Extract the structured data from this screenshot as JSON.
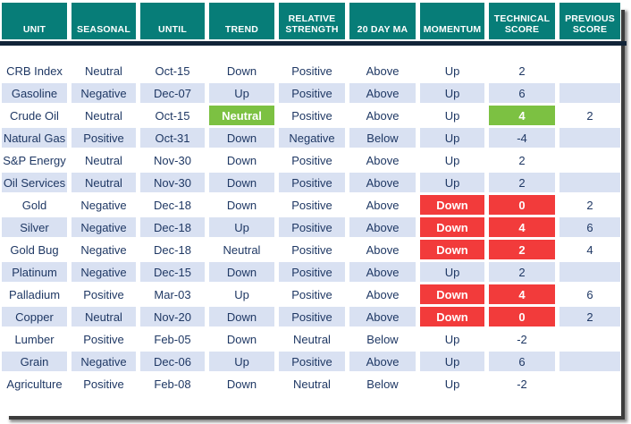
{
  "table": {
    "columns": [
      "UNIT",
      "SEASONAL",
      "UNTIL",
      "TREND",
      "RELATIVE STRENGTH",
      "20 DAY MA",
      "MOMENTUM",
      "TECHNICAL SCORE",
      "PREVIOUS SCORE"
    ],
    "rows": [
      {
        "cells": [
          {
            "text": "CRB Index"
          },
          {
            "text": "Neutral"
          },
          {
            "text": "Oct-15"
          },
          {
            "text": "Down"
          },
          {
            "text": "Positive"
          },
          {
            "text": "Above"
          },
          {
            "text": "Up"
          },
          {
            "text": "2"
          },
          {
            "text": ""
          }
        ]
      },
      {
        "cells": [
          {
            "text": "Gasoline"
          },
          {
            "text": "Negative"
          },
          {
            "text": "Dec-07"
          },
          {
            "text": "Up"
          },
          {
            "text": "Positive"
          },
          {
            "text": "Above"
          },
          {
            "text": "Up"
          },
          {
            "text": "6"
          },
          {
            "text": ""
          }
        ]
      },
      {
        "cells": [
          {
            "text": "Crude Oil"
          },
          {
            "text": "Neutral"
          },
          {
            "text": "Oct-15"
          },
          {
            "text": "Neutral",
            "hl": "green"
          },
          {
            "text": "Positive"
          },
          {
            "text": "Above"
          },
          {
            "text": "Up"
          },
          {
            "text": "4",
            "hl": "green"
          },
          {
            "text": "2"
          }
        ]
      },
      {
        "cells": [
          {
            "text": "Natural Gas"
          },
          {
            "text": "Positive"
          },
          {
            "text": "Oct-31"
          },
          {
            "text": "Down"
          },
          {
            "text": "Negative"
          },
          {
            "text": "Below"
          },
          {
            "text": "Up"
          },
          {
            "text": "-4"
          },
          {
            "text": ""
          }
        ]
      },
      {
        "cells": [
          {
            "text": "S&P Energy"
          },
          {
            "text": "Neutral"
          },
          {
            "text": "Nov-30"
          },
          {
            "text": "Down"
          },
          {
            "text": "Positive"
          },
          {
            "text": "Above"
          },
          {
            "text": "Up"
          },
          {
            "text": "2"
          },
          {
            "text": ""
          }
        ]
      },
      {
        "cells": [
          {
            "text": "Oil Services"
          },
          {
            "text": "Neutral"
          },
          {
            "text": "Nov-30"
          },
          {
            "text": "Down"
          },
          {
            "text": "Positive"
          },
          {
            "text": "Above"
          },
          {
            "text": "Up"
          },
          {
            "text": "2"
          },
          {
            "text": ""
          }
        ]
      },
      {
        "cells": [
          {
            "text": "Gold"
          },
          {
            "text": "Negative"
          },
          {
            "text": "Dec-18"
          },
          {
            "text": "Down"
          },
          {
            "text": "Positive"
          },
          {
            "text": "Above"
          },
          {
            "text": "Down",
            "hl": "red"
          },
          {
            "text": "0",
            "hl": "red"
          },
          {
            "text": "2"
          }
        ]
      },
      {
        "cells": [
          {
            "text": "Silver"
          },
          {
            "text": "Negative"
          },
          {
            "text": "Dec-18"
          },
          {
            "text": "Up"
          },
          {
            "text": "Positive"
          },
          {
            "text": "Above"
          },
          {
            "text": "Down",
            "hl": "red"
          },
          {
            "text": "4",
            "hl": "red"
          },
          {
            "text": "6"
          }
        ]
      },
      {
        "cells": [
          {
            "text": "Gold Bug"
          },
          {
            "text": "Negative"
          },
          {
            "text": "Dec-18"
          },
          {
            "text": "Neutral"
          },
          {
            "text": "Positive"
          },
          {
            "text": "Above"
          },
          {
            "text": "Down",
            "hl": "red"
          },
          {
            "text": "2",
            "hl": "red"
          },
          {
            "text": "4"
          }
        ]
      },
      {
        "cells": [
          {
            "text": "Platinum"
          },
          {
            "text": "Negative"
          },
          {
            "text": "Dec-15"
          },
          {
            "text": "Down"
          },
          {
            "text": "Positive"
          },
          {
            "text": "Above"
          },
          {
            "text": "Up"
          },
          {
            "text": "2"
          },
          {
            "text": ""
          }
        ]
      },
      {
        "cells": [
          {
            "text": "Palladium"
          },
          {
            "text": "Positive"
          },
          {
            "text": "Mar-03"
          },
          {
            "text": "Up"
          },
          {
            "text": "Positive"
          },
          {
            "text": "Above"
          },
          {
            "text": "Down",
            "hl": "red"
          },
          {
            "text": "4",
            "hl": "red"
          },
          {
            "text": "6"
          }
        ]
      },
      {
        "cells": [
          {
            "text": "Copper"
          },
          {
            "text": "Neutral"
          },
          {
            "text": "Nov-20"
          },
          {
            "text": "Down"
          },
          {
            "text": "Positive"
          },
          {
            "text": "Above"
          },
          {
            "text": "Down",
            "hl": "red"
          },
          {
            "text": "0",
            "hl": "red"
          },
          {
            "text": "2"
          }
        ]
      },
      {
        "cells": [
          {
            "text": "Lumber"
          },
          {
            "text": "Positive"
          },
          {
            "text": "Feb-05"
          },
          {
            "text": "Down"
          },
          {
            "text": "Neutral"
          },
          {
            "text": "Below"
          },
          {
            "text": "Up"
          },
          {
            "text": "-2"
          },
          {
            "text": ""
          }
        ]
      },
      {
        "cells": [
          {
            "text": "Grain"
          },
          {
            "text": "Negative"
          },
          {
            "text": "Dec-06"
          },
          {
            "text": "Up"
          },
          {
            "text": "Positive"
          },
          {
            "text": "Above"
          },
          {
            "text": "Up"
          },
          {
            "text": "6"
          },
          {
            "text": ""
          }
        ]
      },
      {
        "cells": [
          {
            "text": "Agriculture"
          },
          {
            "text": "Positive"
          },
          {
            "text": "Feb-08"
          },
          {
            "text": "Down"
          },
          {
            "text": "Neutral"
          },
          {
            "text": "Below"
          },
          {
            "text": "Up"
          },
          {
            "text": "-2"
          },
          {
            "text": ""
          }
        ]
      }
    ]
  },
  "colors": {
    "header_bg": "#077D78",
    "header_text": "#FFFFFF",
    "band_row": "#D9E1F2",
    "body_text": "#1F3864",
    "highlight_green": "#7CC142",
    "highlight_red": "#F23B3B",
    "header_divider": "#122438",
    "shadow": "#3C3C3C"
  }
}
